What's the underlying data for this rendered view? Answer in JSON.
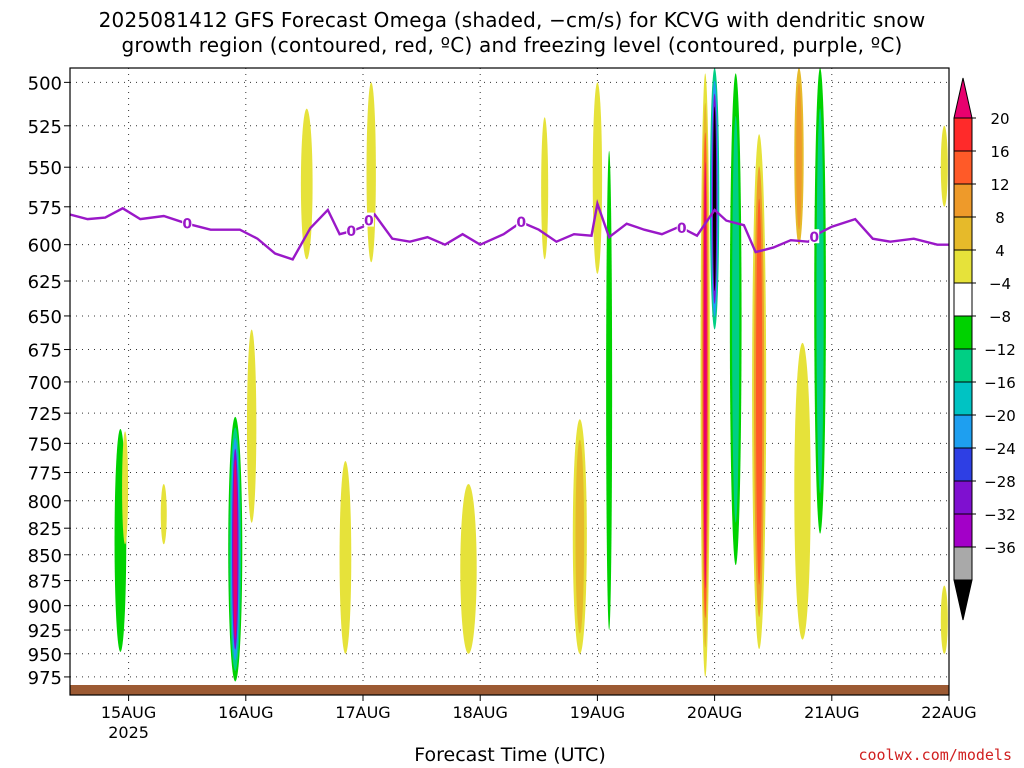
{
  "title_line1": "2025081412 GFS Forecast Omega (shaded, −cm/s) for KCVG with dendritic snow",
  "title_line2": "growth region (contoured, red, ºC) and freezing level (contoured, purple, ºC)",
  "credit": "coolwx.com/models",
  "chart_data": {
    "type": "heatmap",
    "title": "2025081412 GFS Forecast Omega (shaded, −cm/s) for KCVG with dendritic snow growth region (contoured, red, ºC) and freezing level (contoured, purple, ºC)",
    "xlabel": "Forecast Time (UTC)",
    "ylabel": "",
    "x_tick_labels": [
      "15AUG",
      "16AUG",
      "17AUG",
      "18AUG",
      "19AUG",
      "20AUG",
      "21AUG",
      "22AUG"
    ],
    "x_year_label": "2025",
    "x_range_days": [
      14.5,
      22.0
    ],
    "y_tick_labels": [
      "500",
      "525",
      "550",
      "575",
      "600",
      "625",
      "650",
      "675",
      "700",
      "725",
      "750",
      "775",
      "800",
      "825",
      "850",
      "875",
      "900",
      "925",
      "950",
      "975"
    ],
    "y_range_hpa": [
      995,
      492
    ],
    "y_scale": "log",
    "grid": true,
    "colorbar": {
      "levels": [
        "20",
        "16",
        "12",
        "8",
        "4",
        "−4",
        "−8",
        "−12",
        "−16",
        "−20",
        "−24",
        "−28",
        "−32",
        "−36"
      ],
      "colors": [
        "#e8006e",
        "#ff2a2a",
        "#ff5a28",
        "#ee9a2a",
        "#e6ba2a",
        "#e6e23a",
        "#ffffff",
        "#00d200",
        "#00cf84",
        "#00c3c3",
        "#1e9ff0",
        "#2e3fe4",
        "#7f10d0",
        "#a300c8",
        "#a9a9a9",
        "#000000"
      ]
    },
    "omega_regions": [
      {
        "day": 14.93,
        "p_top": 738,
        "p_bottom": 948,
        "half_width_days": 0.05,
        "shades": [
          "#00d200",
          "#00d200"
        ]
      },
      {
        "day": 15.91,
        "p_top": 728,
        "p_bottom": 980,
        "half_width_days": 0.06,
        "shades": [
          "#00d200",
          "#00cf84",
          "#1e9ff0",
          "#7f10d0",
          "#e8006e"
        ]
      },
      {
        "day": 14.97,
        "p_top": 740,
        "p_bottom": 840,
        "half_width_days": 0.02,
        "shades": [
          "#e6e23a"
        ]
      },
      {
        "day": 15.3,
        "p_top": 785,
        "p_bottom": 840,
        "half_width_days": 0.02,
        "shades": [
          "#e6e23a"
        ]
      },
      {
        "day": 16.05,
        "p_top": 660,
        "p_bottom": 820,
        "half_width_days": 0.04,
        "shades": [
          "#e6e23a"
        ]
      },
      {
        "day": 16.52,
        "p_top": 515,
        "p_bottom": 610,
        "half_width_days": 0.05,
        "shades": [
          "#e6e23a"
        ]
      },
      {
        "day": 16.85,
        "p_top": 765,
        "p_bottom": 950,
        "half_width_days": 0.05,
        "shades": [
          "#e6e23a"
        ]
      },
      {
        "day": 17.07,
        "p_top": 500,
        "p_bottom": 612,
        "half_width_days": 0.04,
        "shades": [
          "#e6e23a"
        ]
      },
      {
        "day": 17.9,
        "p_top": 785,
        "p_bottom": 950,
        "half_width_days": 0.07,
        "shades": [
          "#e6e23a"
        ]
      },
      {
        "day": 18.55,
        "p_top": 520,
        "p_bottom": 610,
        "half_width_days": 0.03,
        "shades": [
          "#e6e23a"
        ]
      },
      {
        "day": 18.85,
        "p_top": 730,
        "p_bottom": 950,
        "half_width_days": 0.06,
        "shades": [
          "#e6e23a",
          "#e6ba2a"
        ]
      },
      {
        "day": 19.0,
        "p_top": 500,
        "p_bottom": 620,
        "half_width_days": 0.04,
        "shades": [
          "#e6e23a"
        ]
      },
      {
        "day": 19.1,
        "p_top": 540,
        "p_bottom": 925,
        "half_width_days": 0.02,
        "shades": [
          "#00d200"
        ]
      },
      {
        "day": 19.92,
        "p_top": 495,
        "p_bottom": 975,
        "half_width_days": 0.04,
        "shades": [
          "#e6e23a",
          "#e6ba2a",
          "#ff5a28",
          "#e8006e"
        ]
      },
      {
        "day": 20.0,
        "p_top": 492,
        "p_bottom": 660,
        "half_width_days": 0.04,
        "shades": [
          "#00cf84",
          "#1e9ff0",
          "#7f10d0",
          "#000000"
        ]
      },
      {
        "day": 20.18,
        "p_top": 495,
        "p_bottom": 860,
        "half_width_days": 0.05,
        "shades": [
          "#00d200",
          "#00cf84"
        ]
      },
      {
        "day": 20.38,
        "p_top": 530,
        "p_bottom": 945,
        "half_width_days": 0.06,
        "shades": [
          "#e6e23a",
          "#ee9a2a",
          "#ff5a28"
        ]
      },
      {
        "day": 20.72,
        "p_top": 492,
        "p_bottom": 600,
        "half_width_days": 0.04,
        "shades": [
          "#e6ba2a",
          "#ee9a2a"
        ]
      },
      {
        "day": 20.75,
        "p_top": 670,
        "p_bottom": 935,
        "half_width_days": 0.07,
        "shades": [
          "#e6e23a"
        ]
      },
      {
        "day": 20.9,
        "p_top": 492,
        "p_bottom": 830,
        "half_width_days": 0.05,
        "shades": [
          "#00d200",
          "#00cf84"
        ]
      },
      {
        "day": 21.96,
        "p_top": 525,
        "p_bottom": 575,
        "half_width_days": 0.03,
        "shades": [
          "#e6e23a"
        ]
      },
      {
        "day": 21.96,
        "p_top": 880,
        "p_bottom": 950,
        "half_width_days": 0.03,
        "shades": [
          "#e6e23a"
        ]
      }
    ],
    "freezing_level_0C": {
      "day": [
        14.5,
        14.65,
        14.8,
        14.95,
        15.1,
        15.3,
        15.5,
        15.7,
        15.95,
        16.1,
        16.25,
        16.4,
        16.55,
        16.7,
        16.8,
        16.9,
        17.0,
        17.1,
        17.25,
        17.4,
        17.55,
        17.7,
        17.85,
        18.0,
        18.2,
        18.35,
        18.5,
        18.65,
        18.8,
        18.95,
        19.0,
        19.1,
        19.25,
        19.4,
        19.55,
        19.7,
        19.85,
        20.0,
        20.1,
        20.25,
        20.35,
        20.5,
        20.65,
        20.8,
        20.9,
        21.0,
        21.2,
        21.35,
        21.5,
        21.7,
        21.9,
        22.0
      ],
      "hpa": [
        580,
        583,
        582,
        576,
        583,
        581,
        586,
        590,
        590,
        596,
        606,
        610,
        589,
        577,
        593,
        591,
        588,
        580,
        596,
        598,
        595,
        600,
        593,
        600,
        593,
        585,
        590,
        598,
        593,
        594,
        573,
        595,
        586,
        590,
        593,
        588,
        594,
        577,
        584,
        587,
        605,
        602,
        597,
        598,
        592,
        588,
        583,
        596,
        598,
        596,
        600,
        600
      ],
      "labels_at_days": [
        15.5,
        16.9,
        17.05,
        18.35,
        19.72,
        20.85
      ]
    }
  }
}
